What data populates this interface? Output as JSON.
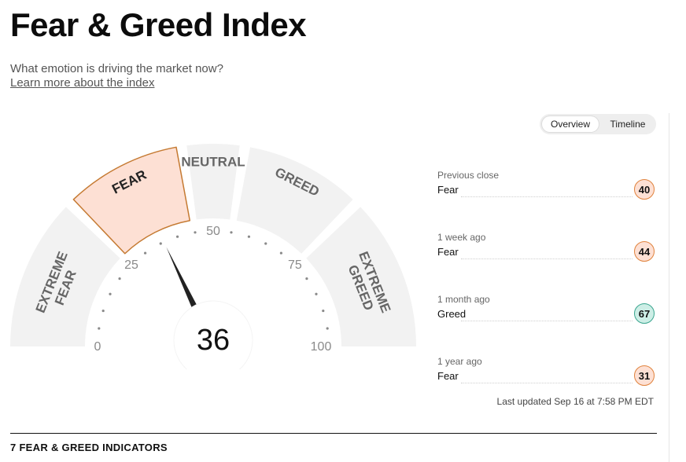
{
  "header": {
    "title": "Fear & Greed Index",
    "subtitle": "What emotion is driving the market now?",
    "learn_more": "Learn more about the index"
  },
  "tabs": [
    {
      "label": "Overview",
      "active": true
    },
    {
      "label": "Timeline",
      "active": false
    }
  ],
  "gauge": {
    "value": 36,
    "value_label": "36",
    "current_sentiment": "Fear",
    "segments": [
      {
        "label_lines": [
          "EXTREME",
          "FEAR"
        ],
        "from": 0,
        "to": 25
      },
      {
        "label_lines": [
          "FEAR"
        ],
        "from": 25,
        "to": 45
      },
      {
        "label_lines": [
          "NEUTRAL"
        ],
        "from": 45,
        "to": 55
      },
      {
        "label_lines": [
          "GREED"
        ],
        "from": 55,
        "to": 75
      },
      {
        "label_lines": [
          "EXTREME",
          "GREED"
        ],
        "from": 75,
        "to": 100
      }
    ],
    "scale_labels": [
      "0",
      "25",
      "50",
      "75",
      "100"
    ],
    "colors": {
      "segment_bg": "#f2f2f2",
      "active_fill": "#fde0d4",
      "active_stroke": "#c57a32",
      "label": "#666666",
      "needle": "#222222"
    }
  },
  "history": [
    {
      "label": "Previous close",
      "sentiment": "Fear",
      "value": "40",
      "kind": "fear"
    },
    {
      "label": "1 week ago",
      "sentiment": "Fear",
      "value": "44",
      "kind": "fear"
    },
    {
      "label": "1 month ago",
      "sentiment": "Greed",
      "value": "67",
      "kind": "greed"
    },
    {
      "label": "1 year ago",
      "sentiment": "Fear",
      "value": "31",
      "kind": "fear"
    }
  ],
  "last_updated": "Last updated Sep 16 at 7:58 PM EDT",
  "section_heading": "7 FEAR & GREED INDICATORS"
}
